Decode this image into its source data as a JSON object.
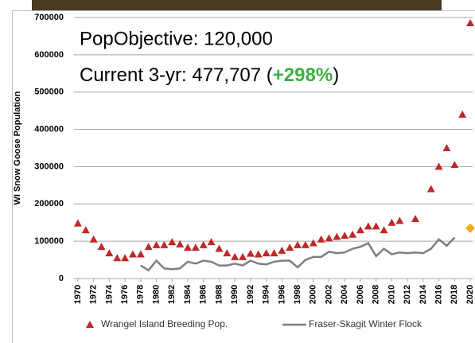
{
  "chart_data": {
    "type": "scatter",
    "y_label": "WI Snow Goose Population",
    "annotations": {
      "objective": "PopObjective: 120,000",
      "current_prefix": "Current 3-yr: 477,707 (",
      "current_change": "+298%",
      "current_suffix": ")"
    },
    "change_color": "#3cb043",
    "xlim": [
      1969.5,
      2020.3
    ],
    "xticks": [
      1970,
      1972,
      1974,
      1976,
      1978,
      1980,
      1982,
      1984,
      1986,
      1988,
      1990,
      1992,
      1994,
      1996,
      1998,
      2000,
      2002,
      2004,
      2006,
      2008,
      2010,
      2012,
      2014,
      2016,
      2018,
      2020
    ],
    "ylim": [
      0,
      700000
    ],
    "yticks": [
      0,
      100000,
      200000,
      300000,
      400000,
      500000,
      600000,
      700000
    ],
    "grid": true,
    "series": [
      {
        "name": "Wrangel Island Breeding Pop.",
        "color": "#c0282a",
        "marker": "triangle",
        "x": [
          1970,
          1971,
          1972,
          1973,
          1974,
          1975,
          1976,
          1977,
          1978,
          1979,
          1980,
          1981,
          1982,
          1983,
          1984,
          1985,
          1986,
          1987,
          1988,
          1989,
          1990,
          1991,
          1992,
          1993,
          1994,
          1995,
          1996,
          1997,
          1998,
          1999,
          2000,
          2001,
          2002,
          2003,
          2004,
          2005,
          2006,
          2007,
          2008,
          2009,
          2010,
          2011,
          2013,
          2015,
          2016,
          2017,
          2018,
          2019,
          2020
        ],
        "values": [
          148000,
          130000,
          105000,
          85000,
          68000,
          55000,
          55000,
          65000,
          65000,
          85000,
          90000,
          90000,
          98000,
          92000,
          83000,
          83000,
          90000,
          98000,
          80000,
          68000,
          58000,
          58000,
          67000,
          65000,
          68000,
          68000,
          75000,
          83000,
          90000,
          90000,
          95000,
          105000,
          108000,
          112000,
          115000,
          118000,
          130000,
          140000,
          140000,
          130000,
          150000,
          155000,
          160000,
          240000,
          300000,
          350000,
          305000,
          440000,
          685000
        ]
      },
      {
        "name": "Fraser-Skagit Winter Flock",
        "color": "#7f7f7f",
        "marker": "line",
        "x": [
          1978,
          1979,
          1980,
          1981,
          1982,
          1983,
          1984,
          1985,
          1986,
          1987,
          1988,
          1989,
          1990,
          1991,
          1992,
          1993,
          1994,
          1995,
          1996,
          1997,
          1998,
          1999,
          2000,
          2001,
          2002,
          2003,
          2004,
          2005,
          2006,
          2007,
          2008,
          2009,
          2010,
          2011,
          2012,
          2013,
          2014,
          2015,
          2016,
          2017,
          2018
        ],
        "values": [
          35000,
          22000,
          48000,
          27000,
          25000,
          27000,
          45000,
          40000,
          48000,
          45000,
          35000,
          35000,
          40000,
          35000,
          48000,
          40000,
          38000,
          45000,
          48000,
          48000,
          30000,
          50000,
          58000,
          58000,
          72000,
          68000,
          70000,
          80000,
          85000,
          95000,
          60000,
          80000,
          65000,
          70000,
          68000,
          70000,
          68000,
          80000,
          105000,
          88000,
          110000
        ]
      },
      {
        "color": "#f6a81c",
        "marker": "diamond",
        "x": [
          2020
        ],
        "values": [
          135000
        ]
      }
    ]
  }
}
